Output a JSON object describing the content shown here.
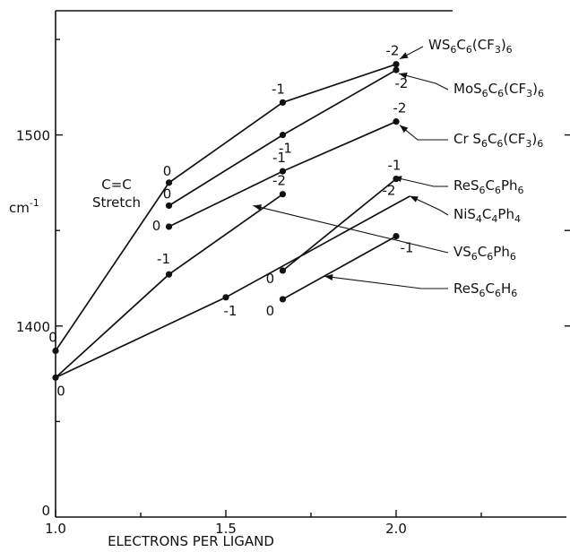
{
  "chart_data": {
    "type": "line",
    "title": "",
    "xlabel": "ELECTRONS PER LIGAND",
    "ylabel": "cm⁻¹",
    "annotation": [
      "C=C",
      "Stretch"
    ],
    "xlim": [
      1.0,
      2.5
    ],
    "ylim": [
      1300,
      1565
    ],
    "x_tick_labels": [
      {
        "value": 1.0,
        "label": "1.0"
      },
      {
        "value": 1.5,
        "label": "1.5"
      },
      {
        "value": 2.0,
        "label": "2.0"
      }
    ],
    "y_tick_labels": [
      {
        "value": 1400,
        "label": "1400"
      },
      {
        "value": 1500,
        "label": "1500"
      }
    ],
    "origin_label": "0",
    "series": [
      {
        "name": "WS6C6(CF3)6",
        "points": [
          {
            "x": 1.0,
            "y": 1387,
            "charge": "0"
          },
          {
            "x": 1.333,
            "y": 1475,
            "charge": "0"
          },
          {
            "x": 1.667,
            "y": 1517,
            "charge": "-1"
          },
          {
            "x": 2.0,
            "y": 1537,
            "charge": "-2"
          }
        ]
      },
      {
        "name": "MoS6C6(CF3)6",
        "points": [
          {
            "x": 1.333,
            "y": 1463,
            "charge": "0"
          },
          {
            "x": 1.667,
            "y": 1500,
            "charge": "-1"
          },
          {
            "x": 2.0,
            "y": 1534,
            "charge": "-2"
          }
        ]
      },
      {
        "name": "CrS6C6(CF3)6",
        "points": [
          {
            "x": 1.333,
            "y": 1452,
            "charge": "0"
          },
          {
            "x": 1.667,
            "y": 1481,
            "charge": "-1"
          },
          {
            "x": 2.0,
            "y": 1507,
            "charge": "-2"
          }
        ]
      },
      {
        "name": "VS6C6Ph6",
        "points": [
          {
            "x": 1.0,
            "y": 1373,
            "charge": "0"
          },
          {
            "x": 1.333,
            "y": 1427,
            "charge": "-1"
          },
          {
            "x": 1.667,
            "y": 1469,
            "charge": "-2"
          }
        ]
      },
      {
        "name": "ReS6C6Ph6",
        "points": [
          {
            "x": 1.667,
            "y": 1429,
            "charge": "0"
          },
          {
            "x": 2.0,
            "y": 1477,
            "charge": "-1"
          }
        ]
      },
      {
        "name": "NiS4C4Ph4",
        "points": [
          {
            "x": 1.0,
            "y": 1373,
            "charge": ""
          },
          {
            "x": 1.5,
            "y": 1415,
            "charge": "-1"
          },
          {
            "x": 2.0,
            "y": 1464,
            "charge": "-2"
          }
        ]
      },
      {
        "name": "ReS6C6H6",
        "points": [
          {
            "x": 1.667,
            "y": 1414,
            "charge": "0"
          },
          {
            "x": 2.0,
            "y": 1447,
            "charge": "-1"
          }
        ]
      }
    ],
    "legend_labels": [
      {
        "text": "WS6C6(CF3)6",
        "parts": [
          [
            "WS",
            ""
          ],
          [
            "6",
            "sub"
          ],
          [
            "C",
            ""
          ],
          [
            "6",
            "sub"
          ],
          [
            "(CF",
            ""
          ],
          [
            "3",
            "sub"
          ],
          [
            ")",
            ""
          ],
          [
            "6",
            "sub"
          ]
        ]
      },
      {
        "text": "MoS6C6(CF3)6",
        "parts": [
          [
            "MoS",
            ""
          ],
          [
            "6",
            "sub"
          ],
          [
            "C",
            ""
          ],
          [
            "6",
            "sub"
          ],
          [
            "(CF",
            ""
          ],
          [
            "3",
            "sub"
          ],
          [
            ")",
            ""
          ],
          [
            "6",
            "sub"
          ]
        ]
      },
      {
        "text": "Cr S6C6(CF3)6",
        "parts": [
          [
            "Cr S",
            ""
          ],
          [
            "6",
            "sub"
          ],
          [
            "C",
            ""
          ],
          [
            "6",
            "sub"
          ],
          [
            "(CF",
            ""
          ],
          [
            "3",
            "sub"
          ],
          [
            ")",
            ""
          ],
          [
            "6",
            "sub"
          ]
        ]
      },
      {
        "text": "ReS6C6Ph6",
        "parts": [
          [
            "ReS",
            ""
          ],
          [
            "6",
            "sub"
          ],
          [
            "C",
            ""
          ],
          [
            "6",
            "sub"
          ],
          [
            "Ph",
            ""
          ],
          [
            "6",
            "sub"
          ]
        ]
      },
      {
        "text": "NiS4C4Ph4",
        "parts": [
          [
            "NiS",
            ""
          ],
          [
            "4",
            "sub"
          ],
          [
            "C",
            ""
          ],
          [
            "4",
            "sub"
          ],
          [
            "Ph",
            ""
          ],
          [
            "4",
            "sub"
          ]
        ]
      },
      {
        "text": "VS6C6Ph6",
        "parts": [
          [
            "VS",
            ""
          ],
          [
            "6",
            "sub"
          ],
          [
            "C",
            ""
          ],
          [
            "6",
            "sub"
          ],
          [
            "Ph",
            ""
          ],
          [
            "6",
            "sub"
          ]
        ]
      },
      {
        "text": "ReS6C6H6",
        "parts": [
          [
            "ReS",
            ""
          ],
          [
            "6",
            "sub"
          ],
          [
            "C",
            ""
          ],
          [
            "6",
            "sub"
          ],
          [
            "H",
            ""
          ],
          [
            "6",
            "sub"
          ]
        ]
      }
    ]
  }
}
